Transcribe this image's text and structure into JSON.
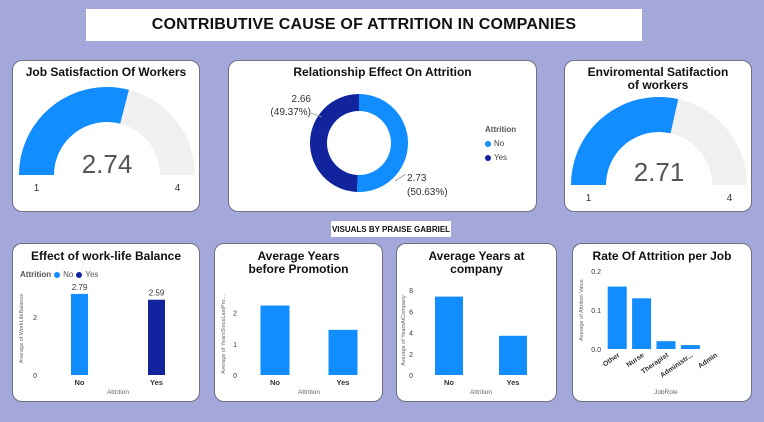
{
  "page_title": "CONTRIBUTIVE CAUSE OF ATTRITION IN COMPANIES",
  "credit": "VISUALS BY PRAISE GABRIEL",
  "colors": {
    "no": "#118dff",
    "yes": "#12239e",
    "gauge_bg": "#f0f0f0"
  },
  "chart_data": [
    {
      "id": "job_satisfaction",
      "type": "gauge",
      "title": "Job Satisfaction Of Workers",
      "value": 2.74,
      "value_label": "2.74",
      "min": 1,
      "max": 4,
      "min_label": "1",
      "max_label": "4"
    },
    {
      "id": "relationship",
      "type": "donut",
      "title": "Relationship Effect On Attrition",
      "legend_title": "Attrition",
      "slices": [
        {
          "name": "No",
          "value": 2.73,
          "label": "2.73",
          "pct": "(50.63%)"
        },
        {
          "name": "Yes",
          "value": 2.66,
          "label": "2.66",
          "pct": "(49.37%)"
        }
      ]
    },
    {
      "id": "env_satisfaction",
      "type": "gauge",
      "title": "Enviromental Satifaction of workers",
      "value": 2.71,
      "value_label": "2.71",
      "min": 1,
      "max": 4,
      "min_label": "1",
      "max_label": "4"
    },
    {
      "id": "work_life",
      "type": "bar",
      "title": "Effect of work-life Balance",
      "legend_title": "Attrition",
      "legend": [
        "No",
        "Yes"
      ],
      "categories": [
        "No",
        "Yes"
      ],
      "values": [
        2.79,
        2.59
      ],
      "data_labels": [
        "2.79",
        "2.59"
      ],
      "ylim": [
        0,
        3.2
      ],
      "yticks": [
        0,
        2
      ],
      "ylabel": "Average of WorkLifeBalance",
      "xlabel": "Attrition",
      "colored_by_category": true
    },
    {
      "id": "promotion",
      "type": "bar",
      "title": "Average Years before Promotion",
      "categories": [
        "No",
        "Yes"
      ],
      "values": [
        2.23,
        1.45
      ],
      "ylim": [
        0,
        2.6
      ],
      "yticks": [
        0,
        1,
        2
      ],
      "ylabel": "Average of YearsSinceLastPro...",
      "xlabel": "Attrition"
    },
    {
      "id": "years_company",
      "type": "bar",
      "title": "Average Years at company",
      "categories": [
        "No",
        "Yes"
      ],
      "values": [
        7.4,
        3.7
      ],
      "ylim": [
        0,
        8.4
      ],
      "yticks": [
        0,
        2,
        4,
        6,
        8
      ],
      "ylabel": "Average of YearsAtCompany",
      "xlabel": "Attrition"
    },
    {
      "id": "job_attrition",
      "type": "bar",
      "title": "Rate Of Attrition per Job",
      "categories": [
        "Other",
        "Nurse",
        "Therapist",
        "Administr...",
        "Admin"
      ],
      "values": [
        0.16,
        0.13,
        0.02,
        0.01,
        0.0
      ],
      "ylim": [
        0,
        0.2
      ],
      "yticks": [
        0.0,
        0.1,
        0.2
      ],
      "ytick_labels": [
        "0.0",
        "0.1",
        "0.2"
      ],
      "ylabel": "Average of Attrition Value",
      "xlabel": "JobRole",
      "rotate_xticks": true
    }
  ]
}
